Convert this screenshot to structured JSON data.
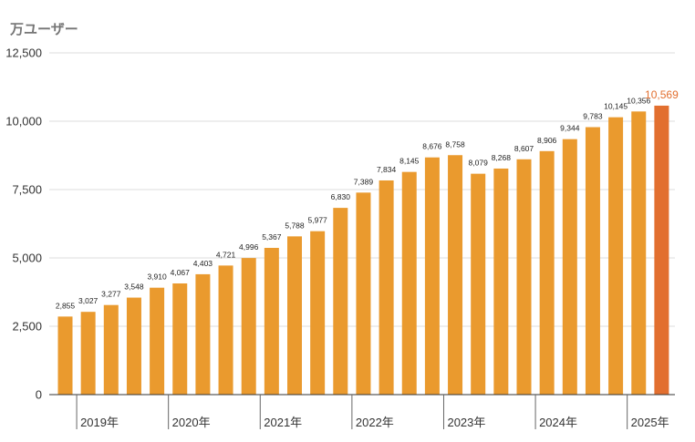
{
  "chart_data": {
    "type": "bar",
    "unit_label": "万ユーザー",
    "ylim": [
      0,
      12500
    ],
    "yticks": [
      {
        "value": 0,
        "label": "0"
      },
      {
        "value": 2500,
        "label": "2,500"
      },
      {
        "value": 5000,
        "label": "5,000"
      },
      {
        "value": 7500,
        "label": "7,500"
      },
      {
        "value": 10000,
        "label": "10,000"
      },
      {
        "value": 12500,
        "label": "12,500"
      }
    ],
    "year_labels": [
      "2019年",
      "2020年",
      "2021年",
      "2022年",
      "2023年",
      "2024年",
      "2025年"
    ],
    "values": [
      2855,
      3027,
      3277,
      3548,
      3910,
      4067,
      4403,
      4721,
      4996,
      5367,
      5788,
      5977,
      6830,
      7389,
      7834,
      8145,
      8676,
      8758,
      8079,
      8268,
      8607,
      8906,
      9344,
      9783,
      10145,
      10356,
      10569
    ],
    "value_labels": [
      "2,855",
      "3,027",
      "3,277",
      "3,548",
      "3,910",
      "4,067",
      "4,403",
      "4,721",
      "4,996",
      "5,367",
      "5,788",
      "5,977",
      "6,830",
      "7,389",
      "7,834",
      "8,145",
      "8,676",
      "8,758",
      "8,079",
      "8,268",
      "8,607",
      "8,906",
      "9,344",
      "9,783",
      "10,145",
      "10,356",
      "10,569"
    ],
    "highlight_index": 26,
    "colors": {
      "bar": "#EA9A2E",
      "highlight": "#E26F2F",
      "grid": "#DDDDDD",
      "axis": "#333333"
    },
    "grid": true
  }
}
